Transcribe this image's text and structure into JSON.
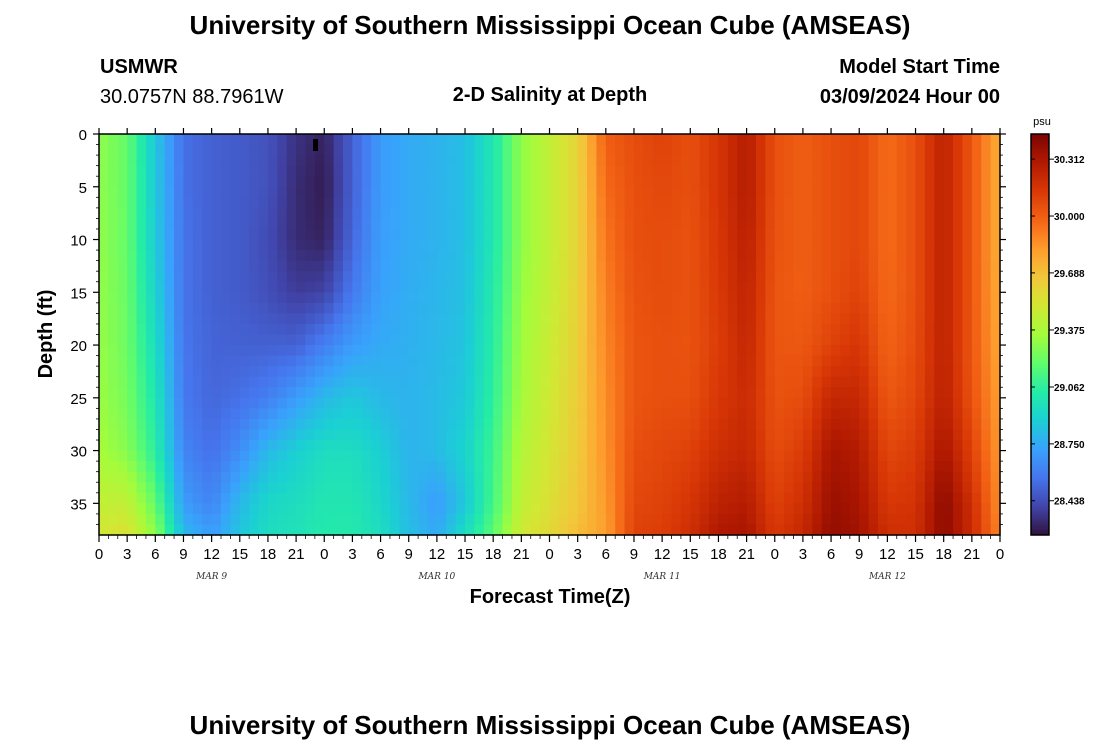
{
  "header": {
    "title": "University of Southern Mississippi Ocean Cube (AMSEAS)",
    "station_id": "USMWR",
    "coordinates": "30.0757N  88.7961W",
    "plot_title": "2-D Salinity at Depth",
    "model_start_label": "Model Start Time",
    "model_start_value": "03/09/2024 Hour 00"
  },
  "footer": {
    "title": "University of Southern Mississippi Ocean Cube (AMSEAS)"
  },
  "chart_data": {
    "type": "heatmap",
    "title": "2-D Salinity at Depth",
    "xlabel": "Forecast Time(Z)",
    "ylabel": "Depth (ft)",
    "units": "psu",
    "x_range_hours": [
      0,
      96
    ],
    "y_range_ft": [
      0,
      38
    ],
    "y_inverted": true,
    "y_ticks": [
      0,
      5,
      10,
      15,
      20,
      25,
      30,
      35
    ],
    "x_tick_labels": [
      "0",
      "3",
      "6",
      "9",
      "12",
      "15",
      "18",
      "21",
      "0",
      "3",
      "6",
      "9",
      "12",
      "15",
      "18",
      "21",
      "0",
      "3",
      "6",
      "9",
      "12",
      "15",
      "18",
      "21",
      "0",
      "3",
      "6",
      "9",
      "12",
      "15",
      "18",
      "21",
      "0"
    ],
    "day_labels": [
      {
        "label": "MAR 9",
        "hour": 12
      },
      {
        "label": "MAR 10",
        "hour": 36
      },
      {
        "label": "MAR 11",
        "hour": 60
      },
      {
        "label": "MAR 12",
        "hour": 84
      }
    ],
    "colorbar": {
      "ticks": [
        "30.312",
        "30.000",
        "29.688",
        "29.375",
        "29.062",
        "28.750",
        "28.438"
      ],
      "min": 28.25,
      "max": 30.45
    },
    "x_hours": [
      0,
      3,
      6,
      9,
      12,
      15,
      18,
      21,
      24,
      27,
      30,
      33,
      36,
      39,
      42,
      45,
      48,
      51,
      54,
      57,
      60,
      63,
      66,
      69,
      72,
      75,
      78,
      81,
      84,
      87,
      90,
      93,
      96
    ],
    "depths_ft": [
      0,
      5,
      10,
      15,
      20,
      25,
      30,
      35,
      38
    ],
    "salinity": [
      [
        29.3,
        29.3,
        29.31,
        29.31,
        29.32,
        29.33,
        29.36,
        29.45,
        29.52
      ],
      [
        29.2,
        29.2,
        29.2,
        29.21,
        29.22,
        29.24,
        29.28,
        29.45,
        29.55
      ],
      [
        28.85,
        28.86,
        28.87,
        28.9,
        28.95,
        29.0,
        29.05,
        29.2,
        29.3
      ],
      [
        28.55,
        28.55,
        28.56,
        28.56,
        28.57,
        28.58,
        28.62,
        28.7,
        28.8
      ],
      [
        28.5,
        28.5,
        28.5,
        28.5,
        28.51,
        28.52,
        28.55,
        28.62,
        28.7
      ],
      [
        28.48,
        28.48,
        28.48,
        28.48,
        28.5,
        28.55,
        28.65,
        28.8,
        28.85
      ],
      [
        28.45,
        28.45,
        28.43,
        28.44,
        28.5,
        28.6,
        28.8,
        28.92,
        28.95
      ],
      [
        28.35,
        28.33,
        28.33,
        28.38,
        28.5,
        28.7,
        28.88,
        28.95,
        28.98
      ],
      [
        28.3,
        28.28,
        28.3,
        28.4,
        28.6,
        28.8,
        28.95,
        29.0,
        29.02
      ],
      [
        28.5,
        28.5,
        28.52,
        28.58,
        28.7,
        28.85,
        28.95,
        29.0,
        29.02
      ],
      [
        28.7,
        28.7,
        28.71,
        28.72,
        28.75,
        28.8,
        28.88,
        28.92,
        28.95
      ],
      [
        28.75,
        28.75,
        28.75,
        28.76,
        28.77,
        28.78,
        28.78,
        28.8,
        28.82
      ],
      [
        28.78,
        28.78,
        28.78,
        28.79,
        28.8,
        28.81,
        28.81,
        28.7,
        28.75
      ],
      [
        28.82,
        28.82,
        28.82,
        28.83,
        28.84,
        28.86,
        28.9,
        28.85,
        28.95
      ],
      [
        29.0,
        29.0,
        29.0,
        29.02,
        29.04,
        29.06,
        29.1,
        29.12,
        29.18
      ],
      [
        29.3,
        29.3,
        29.3,
        29.32,
        29.34,
        29.36,
        29.4,
        29.45,
        29.5
      ],
      [
        29.45,
        29.45,
        29.45,
        29.46,
        29.48,
        29.5,
        29.52,
        29.55,
        29.58
      ],
      [
        29.6,
        29.6,
        29.6,
        29.61,
        29.62,
        29.63,
        29.64,
        29.66,
        29.7
      ],
      [
        30.0,
        29.96,
        29.93,
        29.9,
        29.88,
        29.86,
        29.85,
        29.82,
        29.8
      ],
      [
        30.06,
        30.05,
        30.05,
        30.04,
        30.03,
        30.03,
        30.05,
        30.08,
        30.1
      ],
      [
        30.1,
        30.08,
        30.06,
        30.06,
        30.05,
        30.05,
        30.08,
        30.1,
        30.12
      ],
      [
        30.05,
        30.05,
        30.04,
        30.04,
        30.04,
        30.05,
        30.1,
        30.15,
        30.18
      ],
      [
        30.15,
        30.15,
        30.14,
        30.13,
        30.12,
        30.14,
        30.18,
        30.25,
        30.3
      ],
      [
        30.28,
        30.28,
        30.26,
        30.24,
        30.22,
        30.2,
        30.22,
        30.28,
        30.32
      ],
      [
        30.05,
        30.05,
        30.04,
        30.03,
        30.03,
        30.04,
        30.06,
        30.1,
        30.14
      ],
      [
        30.0,
        30.0,
        30.0,
        30.0,
        30.02,
        30.06,
        30.12,
        30.18,
        30.22
      ],
      [
        30.05,
        30.05,
        30.05,
        30.05,
        30.1,
        30.22,
        30.32,
        30.36,
        30.38
      ],
      [
        30.08,
        30.08,
        30.08,
        30.1,
        30.15,
        30.22,
        30.28,
        30.32,
        30.34
      ],
      [
        29.95,
        29.95,
        29.95,
        29.96,
        29.98,
        30.02,
        30.08,
        30.14,
        30.18
      ],
      [
        30.05,
        30.05,
        30.05,
        30.05,
        30.06,
        30.08,
        30.12,
        30.16,
        30.18
      ],
      [
        30.25,
        30.25,
        30.25,
        30.25,
        30.25,
        30.26,
        30.32,
        30.4,
        30.4
      ],
      [
        30.02,
        30.02,
        30.02,
        30.02,
        30.02,
        30.04,
        30.1,
        30.18,
        30.2
      ],
      [
        29.75,
        29.75,
        29.75,
        29.76,
        29.78,
        29.8,
        29.82,
        29.85,
        29.88
      ]
    ]
  }
}
